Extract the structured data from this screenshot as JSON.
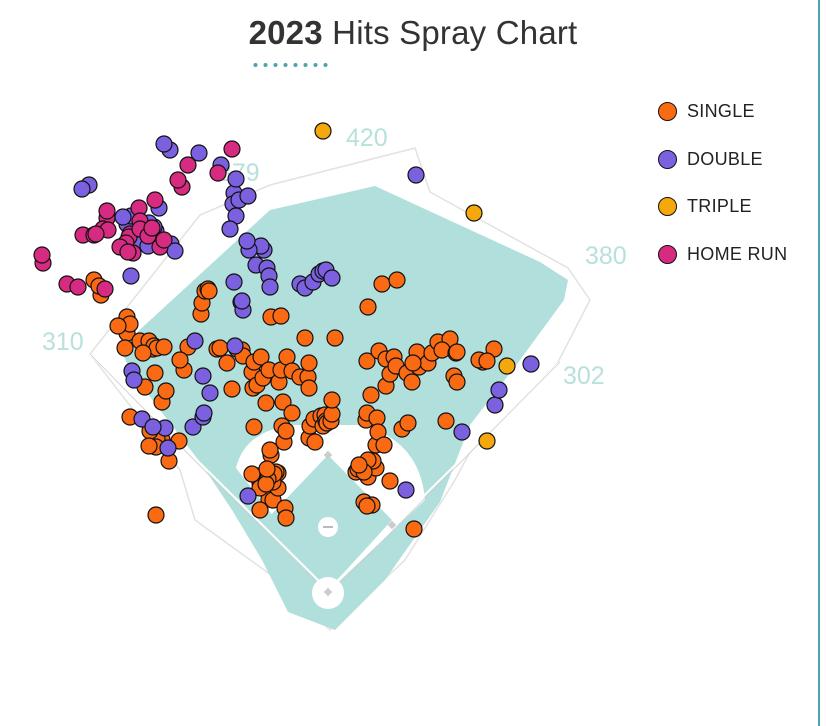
{
  "chart_data": {
    "type": "scatter",
    "title_year": "2023",
    "title_rest": "Hits Spray Chart",
    "distance_labels": [
      "420",
      "379",
      "380",
      "310",
      "302"
    ],
    "legend": [
      {
        "key": "single",
        "label": "SINGLE",
        "color": "#f96a12"
      },
      {
        "key": "double",
        "label": "DOUBLE",
        "color": "#7b61e0"
      },
      {
        "key": "triple",
        "label": "TRIPLE",
        "color": "#f5a80c"
      },
      {
        "key": "hr",
        "label": "HOME RUN",
        "color": "#d62b80"
      }
    ],
    "colors": {
      "field": "#b1e0dc",
      "outline": "#e2e2e2",
      "accent": "#4aa3ad",
      "distance_text": "#b8e1dd"
    },
    "series": [
      {
        "name": "SINGLE",
        "key": "single",
        "points": [
          [
            -172,
            -78
          ],
          [
            -159,
            -132
          ],
          [
            -166,
            -191
          ],
          [
            -162,
            -202
          ],
          [
            -149,
            -152
          ],
          [
            -201,
            -260
          ],
          [
            -201,
            -276
          ],
          [
            -198,
            -269
          ],
          [
            -188,
            -252
          ],
          [
            -179,
            -252
          ],
          [
            -175,
            -244
          ],
          [
            -174,
            -247
          ],
          [
            -171,
            -245
          ],
          [
            -164,
            -246
          ],
          [
            -140,
            -246
          ],
          [
            -127,
            -279
          ],
          [
            -126,
            -290
          ],
          [
            -123,
            -302
          ],
          [
            -120,
            -304
          ],
          [
            -119,
            -302
          ],
          [
            -111,
            -244
          ],
          [
            -108,
            -245
          ],
          [
            -101,
            -230
          ],
          [
            -96,
            -204
          ],
          [
            -91,
            -244
          ],
          [
            -86,
            -243
          ],
          [
            -85,
            -237
          ],
          [
            -76,
            -221
          ],
          [
            -75,
            -205
          ],
          [
            -74,
            -231
          ],
          [
            -71,
            -208
          ],
          [
            -68,
            -110
          ],
          [
            -67,
            -236
          ],
          [
            -65,
            -215
          ],
          [
            -62,
            -190
          ],
          [
            -59,
            -223
          ],
          [
            -58,
            -114
          ],
          [
            -57,
            -138
          ],
          [
            -57,
            -276
          ],
          [
            -50,
            -120
          ],
          [
            -49,
            -211
          ],
          [
            -47,
            -223
          ],
          [
            -47,
            -277
          ],
          [
            -46,
            -167
          ],
          [
            -45,
            -191
          ],
          [
            -44,
            -151
          ],
          [
            -42,
            -162
          ],
          [
            -41,
            -236
          ],
          [
            -36,
            -222
          ],
          [
            -36,
            -180
          ],
          [
            -28,
            -216
          ],
          [
            -23,
            -255
          ],
          [
            -20,
            -216
          ],
          [
            -19,
            -230
          ],
          [
            -19,
            -205
          ],
          [
            -19,
            -155
          ],
          [
            -18,
            -167
          ],
          [
            -14,
            -174
          ],
          [
            -13,
            -151
          ],
          [
            -7,
            -177
          ],
          [
            -5,
            -167
          ],
          [
            -3,
            -178
          ],
          [
            -2,
            -172
          ],
          [
            -1,
            -170
          ],
          [
            3,
            -172
          ],
          [
            4,
            -179
          ],
          [
            4,
            -193
          ],
          [
            7,
            -255
          ],
          [
            38,
            -173
          ],
          [
            39,
            -180
          ],
          [
            39,
            -232
          ],
          [
            40,
            -286
          ],
          [
            40,
            -116
          ],
          [
            43,
            -198
          ],
          [
            48,
            -125
          ],
          [
            48,
            -148
          ],
          [
            49,
            -175
          ],
          [
            50,
            -161
          ],
          [
            51,
            -242
          ],
          [
            54,
            -309
          ],
          [
            56,
            -148
          ],
          [
            58,
            -234
          ],
          [
            58,
            -207
          ],
          [
            62,
            -112
          ],
          [
            62,
            -219
          ],
          [
            66,
            -236
          ],
          [
            68,
            -227
          ],
          [
            69,
            -313
          ],
          [
            74,
            -164
          ],
          [
            79,
            -220
          ],
          [
            80,
            -170
          ],
          [
            84,
            -211
          ],
          [
            89,
            -241
          ],
          [
            91,
            -226
          ],
          [
            86,
            -64
          ],
          [
            100,
            -230
          ],
          [
            85,
            -230
          ],
          [
            104,
            -240
          ],
          [
            110,
            -251
          ],
          [
            118,
            -172
          ],
          [
            122,
            -254
          ],
          [
            114,
            -243
          ],
          [
            126,
            -217
          ],
          [
            128,
            -240
          ],
          [
            129,
            -211
          ],
          [
            129,
            -241
          ],
          [
            155,
            -231
          ],
          [
            151,
            -233
          ],
          [
            166,
            -244
          ],
          [
            159,
            -232
          ],
          [
            45,
            -132
          ],
          [
            40,
            -133
          ],
          [
            28,
            -121
          ],
          [
            30,
            -124
          ],
          [
            -74,
            -166
          ],
          [
            -58,
            -143
          ],
          [
            36,
            -91
          ],
          [
            -59,
            -94
          ],
          [
            -55,
            -93
          ],
          [
            -50,
            -105
          ],
          [
            -57,
            -119
          ],
          [
            -52,
            -121
          ],
          [
            -55,
            -111
          ],
          [
            -43,
            -85
          ],
          [
            -54,
            -119
          ],
          [
            -42,
            -75
          ],
          [
            -68,
            -83
          ],
          [
            -63,
            -110
          ],
          [
            -71,
            -117
          ],
          [
            -76,
            -119
          ],
          [
            -60,
            -114
          ],
          [
            -68,
            -105
          ],
          [
            -62,
            -109
          ],
          [
            -61,
            -124
          ],
          [
            44,
            -88
          ],
          [
            39,
            -87
          ],
          [
            36,
            -121
          ],
          [
            31,
            -128
          ],
          [
            -144,
            -223
          ],
          [
            -148,
            -233
          ],
          [
            -166,
            -153
          ],
          [
            -171,
            -154
          ],
          [
            -172,
            -146
          ],
          [
            -178,
            -162
          ],
          [
            -183,
            -206
          ],
          [
            -173,
            -220
          ],
          [
            -198,
            -176
          ],
          [
            -179,
            -147
          ],
          [
            -185,
            -240
          ],
          [
            -203,
            -245
          ],
          [
            -210,
            -267
          ],
          [
            -227,
            -298
          ],
          [
            -234,
            -313
          ],
          [
            -229,
            -307
          ]
        ]
      },
      {
        "name": "DOUBLE",
        "key": "double",
        "points": [
          [
            -196,
            -222
          ],
          [
            -194,
            -213
          ],
          [
            -186,
            -174
          ],
          [
            -163,
            -165
          ],
          [
            -175,
            -166
          ],
          [
            -160,
            -145
          ],
          [
            -135,
            -166
          ],
          [
            -125,
            -176
          ],
          [
            -124,
            -180
          ],
          [
            -118,
            -200
          ],
          [
            -133,
            -252
          ],
          [
            -125,
            -217
          ],
          [
            -93,
            -247
          ],
          [
            -80,
            -97
          ],
          [
            -72,
            -328
          ],
          [
            -61,
            -325
          ],
          [
            -59,
            -317
          ],
          [
            -94,
            -400
          ],
          [
            -92,
            -414
          ],
          [
            -95,
            -389
          ],
          [
            -89,
            -393
          ],
          [
            -58,
            -306
          ],
          [
            -92,
            -377
          ],
          [
            -98,
            -364
          ],
          [
            -107,
            -428
          ],
          [
            -158,
            -443
          ],
          [
            -164,
            -449
          ],
          [
            -129,
            -440
          ],
          [
            -80,
            -397
          ],
          [
            -28,
            -309
          ],
          [
            -23,
            -305
          ],
          [
            -15,
            -311
          ],
          [
            -9,
            -319
          ],
          [
            -5,
            -322
          ],
          [
            -2,
            -323
          ],
          [
            4,
            -315
          ],
          [
            -239,
            -408
          ],
          [
            -246,
            -404
          ],
          [
            -157,
            -349
          ],
          [
            -153,
            -342
          ],
          [
            -64,
            -343
          ],
          [
            -67,
            -347
          ],
          [
            -79,
            -343
          ],
          [
            -81,
            -352
          ],
          [
            -169,
            -385
          ],
          [
            -170,
            -355
          ],
          [
            -172,
            -362
          ],
          [
            -174,
            -366
          ],
          [
            -188,
            -371
          ],
          [
            -193,
            -365
          ],
          [
            -195,
            -371
          ],
          [
            -179,
            -370
          ],
          [
            -184,
            -366
          ],
          [
            -185,
            -366
          ],
          [
            -201,
            -369
          ],
          [
            -197,
            -377
          ],
          [
            -205,
            -376
          ],
          [
            -194,
            -351
          ],
          [
            -180,
            -347
          ],
          [
            88,
            -418
          ],
          [
            203,
            -229
          ],
          [
            167,
            -188
          ],
          [
            171,
            -203
          ],
          [
            134,
            -161
          ],
          [
            78,
            -103
          ],
          [
            -94,
            -311
          ],
          [
            -87,
            -291
          ],
          [
            -85,
            -283
          ],
          [
            -86,
            -292
          ],
          [
            -197,
            -317
          ]
        ]
      },
      {
        "name": "TRIPLE",
        "key": "triple",
        "points": [
          [
            -5,
            -462
          ],
          [
            146,
            -380
          ],
          [
            179,
            -227
          ],
          [
            159,
            -152
          ]
        ]
      },
      {
        "name": "HOME RUN",
        "key": "hr",
        "points": [
          [
            -96,
            -444
          ],
          [
            -110,
            -420
          ],
          [
            -140,
            -428
          ],
          [
            -146,
            -406
          ],
          [
            -150,
            -413
          ],
          [
            -173,
            -393
          ],
          [
            -189,
            -385
          ],
          [
            -188,
            -372
          ],
          [
            -221,
            -375
          ],
          [
            -221,
            -382
          ],
          [
            -225,
            -364
          ],
          [
            -220,
            -363
          ],
          [
            -245,
            -358
          ],
          [
            -234,
            -358
          ],
          [
            -232,
            -359
          ],
          [
            -198,
            -359
          ],
          [
            -199,
            -356
          ],
          [
            -202,
            -350
          ],
          [
            -208,
            -346
          ],
          [
            -188,
            -364
          ],
          [
            -180,
            -357
          ],
          [
            -168,
            -346
          ],
          [
            -176,
            -365
          ],
          [
            -164,
            -353
          ],
          [
            -195,
            -340
          ],
          [
            -200,
            -341
          ],
          [
            -285,
            -330
          ],
          [
            -286,
            -338
          ],
          [
            -261,
            -309
          ],
          [
            -250,
            -306
          ],
          [
            -223,
            -304
          ]
        ]
      }
    ]
  }
}
